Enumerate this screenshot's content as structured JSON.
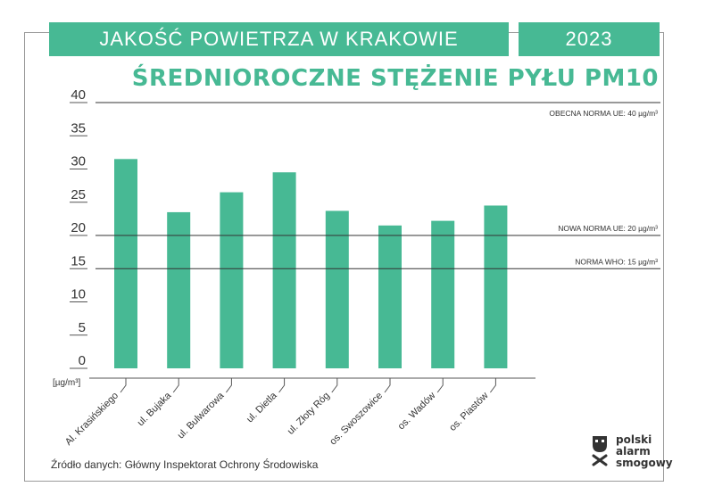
{
  "header": {
    "title": "JAKOŚĆ POWIETRZA W KRAKOWIE",
    "year": "2023",
    "subtitle": "ŚREDNIOROCZNE STĘŻENIE PYŁU PM10"
  },
  "chart_data": {
    "type": "bar",
    "categories": [
      "Al. Krasińskiego",
      "ul. Bujaka",
      "ul. Bulwarowa",
      "ul. Dietla",
      "ul. Złoty Róg",
      "os. Swoszowice",
      "os. Wadów",
      "os. Piastów"
    ],
    "values": [
      31.5,
      23.5,
      26.5,
      29.5,
      23.7,
      21.5,
      22.2,
      24.5
    ],
    "yticks": [
      0,
      5,
      10,
      15,
      20,
      25,
      30,
      35,
      40
    ],
    "ylim": [
      0,
      40
    ],
    "ylabel": "[µg/m³]",
    "reference_lines": [
      {
        "value": 40,
        "label": "OBECNA NORMA UE: 40 µg/m³"
      },
      {
        "value": 20,
        "label": "NOWA NORMA UE: 20 µg/m³"
      },
      {
        "value": 15,
        "label": "NORMA WHO: 15 µg/m³"
      }
    ],
    "bar_color": "#47b994"
  },
  "footer": {
    "source": "Źródło danych: Główny Inspektorat Ochrony Środowiska",
    "logo_lines": [
      "polski",
      "alarm",
      "smogowy"
    ]
  }
}
